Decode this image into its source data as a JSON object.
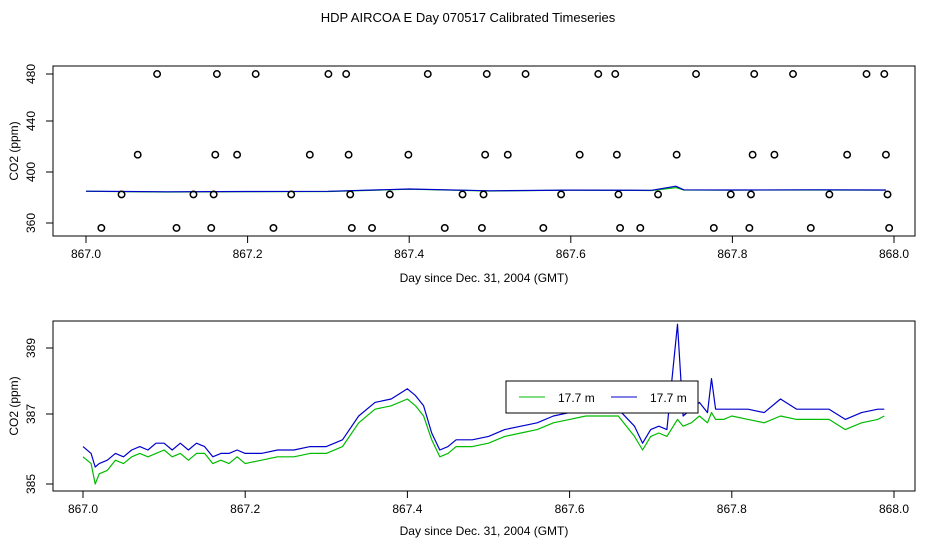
{
  "title": "HDP AIRCOA E  Day 070517  Calibrated Timeseries",
  "colors": {
    "green": "#00bb00",
    "blue": "#0000cc",
    "axis": "#000000"
  },
  "chart_data": [
    {
      "type": "scatter",
      "title": "HDP AIRCOA E  Day 070517  Calibrated Timeseries",
      "xlabel": "Day since Dec. 31, 2004 (GMT)",
      "ylabel": "CO2 (ppm)",
      "xlim": [
        867.0,
        868.0
      ],
      "ylim": [
        352,
        484
      ],
      "x_ticks": [
        "867.0",
        "867.2",
        "867.4",
        "867.6",
        "867.8",
        "868.0"
      ],
      "y_ticks": [
        "360",
        "400",
        "440",
        "480"
      ],
      "grid": false,
      "points": [
        {
          "x": 867.019,
          "y": 356
        },
        {
          "x": 867.044,
          "y": 383
        },
        {
          "x": 867.064,
          "y": 415
        },
        {
          "x": 867.088,
          "y": 480
        },
        {
          "x": 867.112,
          "y": 356
        },
        {
          "x": 867.133,
          "y": 383
        },
        {
          "x": 867.155,
          "y": 356
        },
        {
          "x": 867.158,
          "y": 383
        },
        {
          "x": 867.16,
          "y": 415
        },
        {
          "x": 867.162,
          "y": 480
        },
        {
          "x": 867.187,
          "y": 415
        },
        {
          "x": 867.21,
          "y": 480
        },
        {
          "x": 867.232,
          "y": 356
        },
        {
          "x": 867.254,
          "y": 383
        },
        {
          "x": 867.277,
          "y": 415
        },
        {
          "x": 867.3,
          "y": 480
        },
        {
          "x": 867.322,
          "y": 480
        },
        {
          "x": 867.325,
          "y": 415
        },
        {
          "x": 867.327,
          "y": 383
        },
        {
          "x": 867.329,
          "y": 356
        },
        {
          "x": 867.354,
          "y": 356
        },
        {
          "x": 867.376,
          "y": 383
        },
        {
          "x": 867.399,
          "y": 415
        },
        {
          "x": 867.423,
          "y": 480
        },
        {
          "x": 867.444,
          "y": 356
        },
        {
          "x": 867.466,
          "y": 383
        },
        {
          "x": 867.49,
          "y": 356
        },
        {
          "x": 867.492,
          "y": 383
        },
        {
          "x": 867.494,
          "y": 415
        },
        {
          "x": 867.496,
          "y": 480
        },
        {
          "x": 867.522,
          "y": 415
        },
        {
          "x": 867.544,
          "y": 480
        },
        {
          "x": 867.566,
          "y": 356
        },
        {
          "x": 867.588,
          "y": 383
        },
        {
          "x": 867.611,
          "y": 415
        },
        {
          "x": 867.634,
          "y": 480
        },
        {
          "x": 867.655,
          "y": 480
        },
        {
          "x": 867.657,
          "y": 415
        },
        {
          "x": 867.659,
          "y": 383
        },
        {
          "x": 867.661,
          "y": 356
        },
        {
          "x": 867.686,
          "y": 356
        },
        {
          "x": 867.708,
          "y": 383
        },
        {
          "x": 867.731,
          "y": 415
        },
        {
          "x": 867.755,
          "y": 480
        },
        {
          "x": 867.777,
          "y": 356
        },
        {
          "x": 867.798,
          "y": 383
        },
        {
          "x": 867.821,
          "y": 356
        },
        {
          "x": 867.823,
          "y": 383
        },
        {
          "x": 867.825,
          "y": 415
        },
        {
          "x": 867.827,
          "y": 480
        },
        {
          "x": 867.852,
          "y": 415
        },
        {
          "x": 867.875,
          "y": 480
        },
        {
          "x": 867.897,
          "y": 356
        },
        {
          "x": 867.92,
          "y": 383
        },
        {
          "x": 867.942,
          "y": 415
        },
        {
          "x": 867.966,
          "y": 480
        },
        {
          "x": 867.988,
          "y": 480
        },
        {
          "x": 867.99,
          "y": 415
        },
        {
          "x": 867.992,
          "y": 383
        },
        {
          "x": 867.994,
          "y": 356
        }
      ],
      "lines": [
        {
          "color": "green",
          "x": [
            867.0,
            867.1,
            867.2,
            867.3,
            867.4,
            867.5,
            867.6,
            867.7,
            867.73,
            867.74,
            867.8,
            867.9,
            867.99
          ],
          "y": [
            385.5,
            385.0,
            385.3,
            385.4,
            387.2,
            385.8,
            386.4,
            386.2,
            388.5,
            386.6,
            386.5,
            386.6,
            386.5
          ]
        },
        {
          "color": "blue",
          "x": [
            867.0,
            867.1,
            867.2,
            867.3,
            867.4,
            867.5,
            867.6,
            867.7,
            867.73,
            867.74,
            867.8,
            867.9,
            867.99
          ],
          "y": [
            385.6,
            385.1,
            385.4,
            385.5,
            387.4,
            385.9,
            386.5,
            386.3,
            389.6,
            386.7,
            386.6,
            386.7,
            386.6
          ]
        }
      ]
    },
    {
      "type": "line",
      "xlabel": "Day since Dec. 31, 2004 (GMT)",
      "ylabel": "CO2 (ppm)",
      "xlim": [
        867.0,
        868.0
      ],
      "ylim": [
        384.6,
        390.2
      ],
      "x_ticks": [
        "867.0",
        "867.2",
        "867.4",
        "867.6",
        "867.8",
        "868.0"
      ],
      "y_ticks": [
        "385",
        "387",
        "389"
      ],
      "grid": false,
      "legend": {
        "placement": "center-right",
        "entries": [
          "17.7 m",
          "17.7 m"
        ]
      },
      "series": [
        {
          "name": "17.7 m",
          "color": "green",
          "x": [
            867.0,
            867.01,
            867.015,
            867.02,
            867.03,
            867.04,
            867.05,
            867.06,
            867.07,
            867.08,
            867.09,
            867.1,
            867.11,
            867.12,
            867.13,
            867.14,
            867.15,
            867.16,
            867.17,
            867.18,
            867.19,
            867.2,
            867.22,
            867.24,
            867.26,
            867.28,
            867.3,
            867.32,
            867.34,
            867.36,
            867.38,
            867.4,
            867.41,
            867.42,
            867.43,
            867.44,
            867.45,
            867.46,
            867.48,
            867.5,
            867.52,
            867.54,
            867.56,
            867.58,
            867.6,
            867.62,
            867.64,
            867.66,
            867.68,
            867.69,
            867.7,
            867.71,
            867.72,
            867.733,
            867.74,
            867.75,
            867.76,
            867.77,
            867.775,
            867.78,
            867.79,
            867.8,
            867.82,
            867.84,
            867.86,
            867.88,
            867.9,
            867.92,
            867.94,
            867.96,
            867.98,
            867.988
          ],
          "y": [
            385.8,
            385.6,
            385.0,
            385.3,
            385.4,
            385.7,
            385.6,
            385.8,
            385.9,
            385.8,
            385.9,
            386.0,
            385.8,
            385.9,
            385.7,
            385.9,
            385.9,
            385.6,
            385.7,
            385.6,
            385.8,
            385.6,
            385.7,
            385.8,
            385.8,
            385.9,
            385.9,
            386.1,
            386.8,
            387.2,
            387.3,
            387.5,
            387.3,
            387.0,
            386.3,
            385.8,
            385.9,
            386.1,
            386.1,
            386.2,
            386.4,
            386.5,
            386.6,
            386.8,
            386.9,
            387.0,
            387.0,
            387.0,
            386.4,
            386.0,
            386.4,
            386.5,
            386.4,
            386.9,
            386.7,
            386.8,
            387.0,
            386.8,
            387.1,
            386.9,
            386.9,
            387.0,
            386.9,
            386.8,
            387.0,
            386.9,
            386.9,
            386.9,
            386.6,
            386.8,
            386.9,
            387.0
          ]
        },
        {
          "name": "17.7 m",
          "color": "blue",
          "x": [
            867.0,
            867.01,
            867.015,
            867.02,
            867.03,
            867.04,
            867.05,
            867.06,
            867.07,
            867.08,
            867.09,
            867.1,
            867.11,
            867.12,
            867.13,
            867.14,
            867.15,
            867.16,
            867.17,
            867.18,
            867.19,
            867.2,
            867.22,
            867.24,
            867.26,
            867.28,
            867.3,
            867.32,
            867.34,
            867.36,
            867.38,
            867.4,
            867.41,
            867.42,
            867.43,
            867.44,
            867.45,
            867.46,
            867.48,
            867.5,
            867.52,
            867.54,
            867.56,
            867.58,
            867.6,
            867.62,
            867.64,
            867.66,
            867.68,
            867.69,
            867.7,
            867.71,
            867.72,
            867.733,
            867.74,
            867.75,
            867.76,
            867.77,
            867.775,
            867.78,
            867.79,
            867.8,
            867.82,
            867.84,
            867.86,
            867.88,
            867.9,
            867.92,
            867.94,
            867.96,
            867.98,
            867.988
          ],
          "y": [
            386.1,
            385.9,
            385.5,
            385.6,
            385.7,
            385.9,
            385.8,
            386.0,
            386.1,
            386.0,
            386.2,
            386.2,
            386.0,
            386.2,
            386.0,
            386.2,
            386.1,
            385.8,
            385.9,
            385.9,
            386.0,
            385.9,
            385.9,
            386.0,
            386.0,
            386.1,
            386.1,
            386.3,
            387.0,
            387.4,
            387.5,
            387.8,
            387.6,
            387.3,
            386.5,
            386.0,
            386.1,
            386.3,
            386.3,
            386.4,
            386.6,
            386.7,
            386.8,
            387.0,
            387.1,
            387.2,
            387.2,
            387.2,
            386.7,
            386.2,
            386.6,
            386.7,
            386.6,
            389.7,
            387.0,
            387.2,
            387.4,
            387.1,
            388.1,
            387.2,
            387.2,
            387.2,
            387.2,
            387.1,
            387.5,
            387.2,
            387.2,
            387.2,
            386.9,
            387.1,
            387.2,
            387.2
          ]
        }
      ]
    }
  ]
}
